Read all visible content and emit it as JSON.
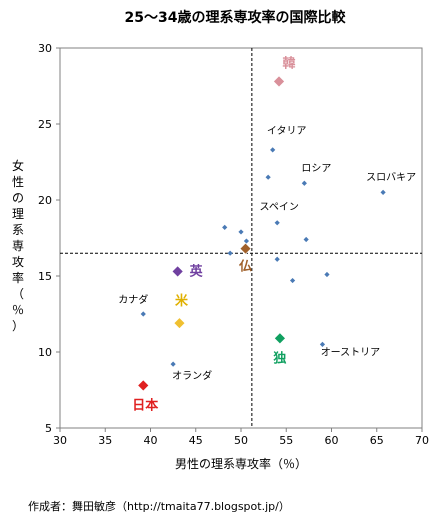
{
  "chart_data": {
    "type": "scatter",
    "title": "25～34歳の理系専攻率の国際比較",
    "xlabel": "男性の理系専攻率（％）",
    "ylabel": "女性の理系専攻率（％）",
    "xlim": [
      30,
      70
    ],
    "ylim": [
      5,
      30
    ],
    "xticks": [
      30,
      35,
      40,
      45,
      50,
      55,
      60,
      65,
      70
    ],
    "yticks": [
      5,
      10,
      15,
      20,
      25,
      30
    ],
    "reference_lines": {
      "x": 51.2,
      "y": 16.5
    },
    "grid": false,
    "points": [
      {
        "x": 54.2,
        "y": 27.8,
        "label": "韓",
        "style": "highlight",
        "color": "#d9909a",
        "label_color": "#d9909a"
      },
      {
        "x": 53.5,
        "y": 23.3,
        "label": "イタリア",
        "style": "small"
      },
      {
        "x": 53.0,
        "y": 21.5,
        "label": "",
        "style": "small"
      },
      {
        "x": 57.0,
        "y": 21.1,
        "label": "ロシア",
        "style": "small"
      },
      {
        "x": 65.7,
        "y": 20.5,
        "label": "スロバキア",
        "style": "small"
      },
      {
        "x": 54.0,
        "y": 18.5,
        "label": "スペイン",
        "style": "small"
      },
      {
        "x": 48.2,
        "y": 18.2,
        "label": "",
        "style": "small"
      },
      {
        "x": 50.0,
        "y": 17.9,
        "label": "",
        "style": "small"
      },
      {
        "x": 50.6,
        "y": 17.3,
        "label": "",
        "style": "small"
      },
      {
        "x": 57.2,
        "y": 17.4,
        "label": "",
        "style": "small"
      },
      {
        "x": 48.8,
        "y": 16.5,
        "label": "",
        "style": "small"
      },
      {
        "x": 50.5,
        "y": 16.8,
        "label": "仏",
        "style": "highlight",
        "color": "#a0602a",
        "label_color": "#a0602a"
      },
      {
        "x": 43.0,
        "y": 15.3,
        "label": "英",
        "style": "highlight",
        "color": "#7040a0",
        "label_color": "#7040a0"
      },
      {
        "x": 54.0,
        "y": 16.1,
        "label": "",
        "style": "small"
      },
      {
        "x": 59.5,
        "y": 15.1,
        "label": "",
        "style": "small"
      },
      {
        "x": 55.7,
        "y": 14.7,
        "label": "",
        "style": "small"
      },
      {
        "x": 39.2,
        "y": 12.5,
        "label": "カナダ",
        "style": "small"
      },
      {
        "x": 43.2,
        "y": 11.9,
        "label": "米",
        "style": "highlight",
        "color": "#f0c030",
        "label_color": "#e0b000"
      },
      {
        "x": 54.3,
        "y": 10.9,
        "label": "独",
        "style": "highlight",
        "color": "#10a060",
        "label_color": "#10a060"
      },
      {
        "x": 59.0,
        "y": 10.5,
        "label": "オーストリア",
        "style": "small"
      },
      {
        "x": 42.5,
        "y": 9.2,
        "label": "オランダ",
        "style": "small"
      },
      {
        "x": 39.2,
        "y": 7.8,
        "label": "日本",
        "style": "highlight",
        "color": "#e02020",
        "label_color": "#e02020"
      }
    ]
  },
  "credit": "作成者：舞田敏彦（http://tmaita77.blogspot.jp/）",
  "colors": {
    "small_point": "#4a7ab5",
    "reference_line": "#000000"
  }
}
